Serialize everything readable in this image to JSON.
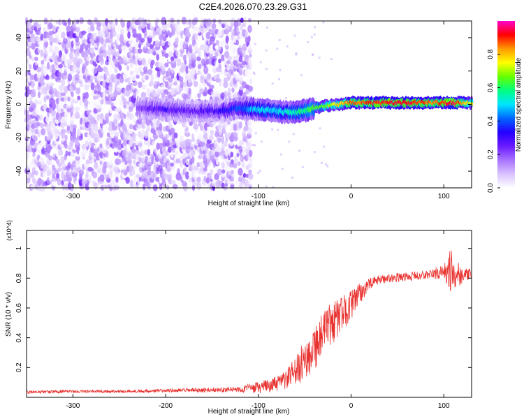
{
  "title": "C2E4.2026.070.23.29.G31",
  "colors": {
    "snr_line": "#e8322f",
    "spec_base": "#7a2be8",
    "axis": "#000000"
  },
  "chart_data": [
    {
      "type": "heatmap",
      "name": "spectrogram",
      "xlabel": "Height of straight line (km)",
      "ylabel": "Frequency (Hz)",
      "xlim": [
        -350,
        130
      ],
      "ylim": [
        -50,
        50
      ],
      "xticks": [
        -300,
        -200,
        -100,
        0,
        100
      ],
      "yticks": [
        -40,
        -20,
        0,
        20,
        40
      ],
      "colorbar": {
        "label": "Normalized spectral amplitude",
        "range": [
          0,
          1
        ],
        "ticks": [
          "0.0",
          "0.2",
          "0.4",
          "0.6",
          "0.8"
        ],
        "tick_values": [
          0.0,
          0.2,
          0.4,
          0.6,
          0.8
        ],
        "colormap": [
          "#ffffff",
          "#d9c2ff",
          "#a873ff",
          "#6a1aff",
          "#2400ff",
          "#0066ff",
          "#00e5ff",
          "#00ff80",
          "#66ff00",
          "#ffff00",
          "#ff9900",
          "#ff0000",
          "#ff00cc"
        ]
      },
      "noise_region": {
        "x_from": -350,
        "x_to": -110,
        "amplitude": 0.2
      },
      "signal_track": {
        "x": [
          -230,
          -200,
          -170,
          -140,
          -120,
          -100,
          -80,
          -60,
          -45,
          -30,
          -15,
          0,
          30,
          60,
          90,
          110,
          130
        ],
        "freq": [
          -2,
          -3,
          -4,
          -4,
          -2,
          -3,
          -4,
          -5,
          -3,
          -1,
          0,
          1,
          1,
          1,
          1,
          1,
          1
        ],
        "amplitude": [
          0.22,
          0.28,
          0.25,
          0.3,
          0.4,
          0.5,
          0.5,
          0.55,
          0.6,
          0.65,
          0.75,
          0.85,
          0.9,
          0.92,
          0.85,
          0.95,
          0.7
        ]
      }
    },
    {
      "type": "line",
      "name": "snr",
      "xlabel": "Height of straight line (km)",
      "ylabel": "SNR (10 * v/v)",
      "multiplier": "(x10^4)",
      "xlim": [
        -350,
        130
      ],
      "ylim": [
        0,
        1.12
      ],
      "xticks": [
        -300,
        -200,
        -100,
        0,
        100
      ],
      "yticks": [
        0.2,
        0.4,
        0.6,
        0.8,
        1
      ],
      "series": [
        {
          "name": "SNR",
          "x": [
            -350,
            -300,
            -250,
            -200,
            -150,
            -120,
            -100,
            -80,
            -70,
            -60,
            -50,
            -40,
            -30,
            -20,
            -10,
            0,
            10,
            20,
            30,
            40,
            60,
            80,
            100,
            110,
            120,
            130
          ],
          "y": [
            0.035,
            0.04,
            0.04,
            0.045,
            0.05,
            0.055,
            0.065,
            0.09,
            0.12,
            0.17,
            0.25,
            0.34,
            0.42,
            0.5,
            0.56,
            0.62,
            0.7,
            0.76,
            0.79,
            0.8,
            0.81,
            0.82,
            0.84,
            0.85,
            0.82,
            0.83
          ],
          "noise": [
            0.01,
            0.01,
            0.01,
            0.012,
            0.015,
            0.02,
            0.04,
            0.05,
            0.07,
            0.1,
            0.14,
            0.16,
            0.16,
            0.15,
            0.12,
            0.1,
            0.07,
            0.04,
            0.03,
            0.03,
            0.03,
            0.03,
            0.05,
            0.18,
            0.05,
            0.03
          ]
        }
      ]
    }
  ]
}
